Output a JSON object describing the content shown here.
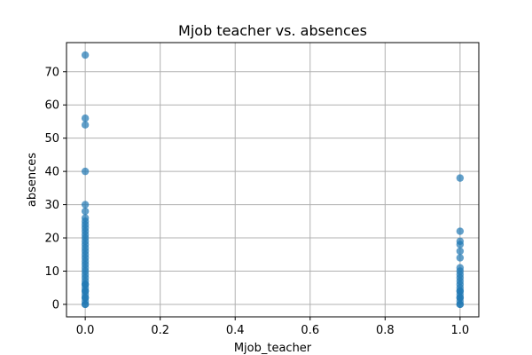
{
  "chart_data": {
    "type": "scatter",
    "title": "Mjob teacher vs. absences",
    "xlabel": "Mjob_teacher",
    "ylabel": "absences",
    "xlim": [
      -0.05,
      1.05
    ],
    "ylim": [
      -3.75,
      78.75
    ],
    "xticks": [
      0.0,
      0.2,
      0.4,
      0.6,
      0.8,
      1.0
    ],
    "xtick_labels": [
      "0.0",
      "0.2",
      "0.4",
      "0.6",
      "0.8",
      "1.0"
    ],
    "yticks": [
      0,
      10,
      20,
      30,
      40,
      50,
      60,
      70
    ],
    "ytick_labels": [
      "0",
      "10",
      "20",
      "30",
      "40",
      "50",
      "60",
      "70"
    ],
    "grid": true,
    "marker_color": "#1f77b4",
    "marker_alpha": 0.7,
    "series": [
      {
        "x": [
          0,
          0,
          0,
          0,
          0,
          0,
          0,
          0,
          0,
          0,
          0,
          0,
          0,
          0,
          0,
          0,
          0,
          0,
          0,
          0,
          0,
          0,
          0,
          0,
          0,
          0,
          0,
          0,
          0,
          0,
          0,
          0,
          0,
          0,
          0,
          0,
          0
        ],
        "y": [
          0,
          1,
          2,
          3,
          4,
          5,
          6,
          7,
          8,
          9,
          10,
          11,
          12,
          13,
          14,
          15,
          16,
          17,
          18,
          19,
          20,
          21,
          22,
          23,
          24,
          25,
          26,
          28,
          30,
          40,
          54,
          56,
          75,
          0,
          2,
          4,
          6
        ]
      },
      {
        "x": [
          1,
          1,
          1,
          1,
          1,
          1,
          1,
          1,
          1,
          1,
          1,
          1,
          1,
          1,
          1,
          1,
          1,
          1,
          1,
          1,
          1
        ],
        "y": [
          0,
          1,
          2,
          3,
          4,
          5,
          6,
          7,
          8,
          9,
          10,
          11,
          14,
          16,
          18,
          19,
          22,
          38,
          0,
          2,
          4
        ]
      }
    ]
  }
}
